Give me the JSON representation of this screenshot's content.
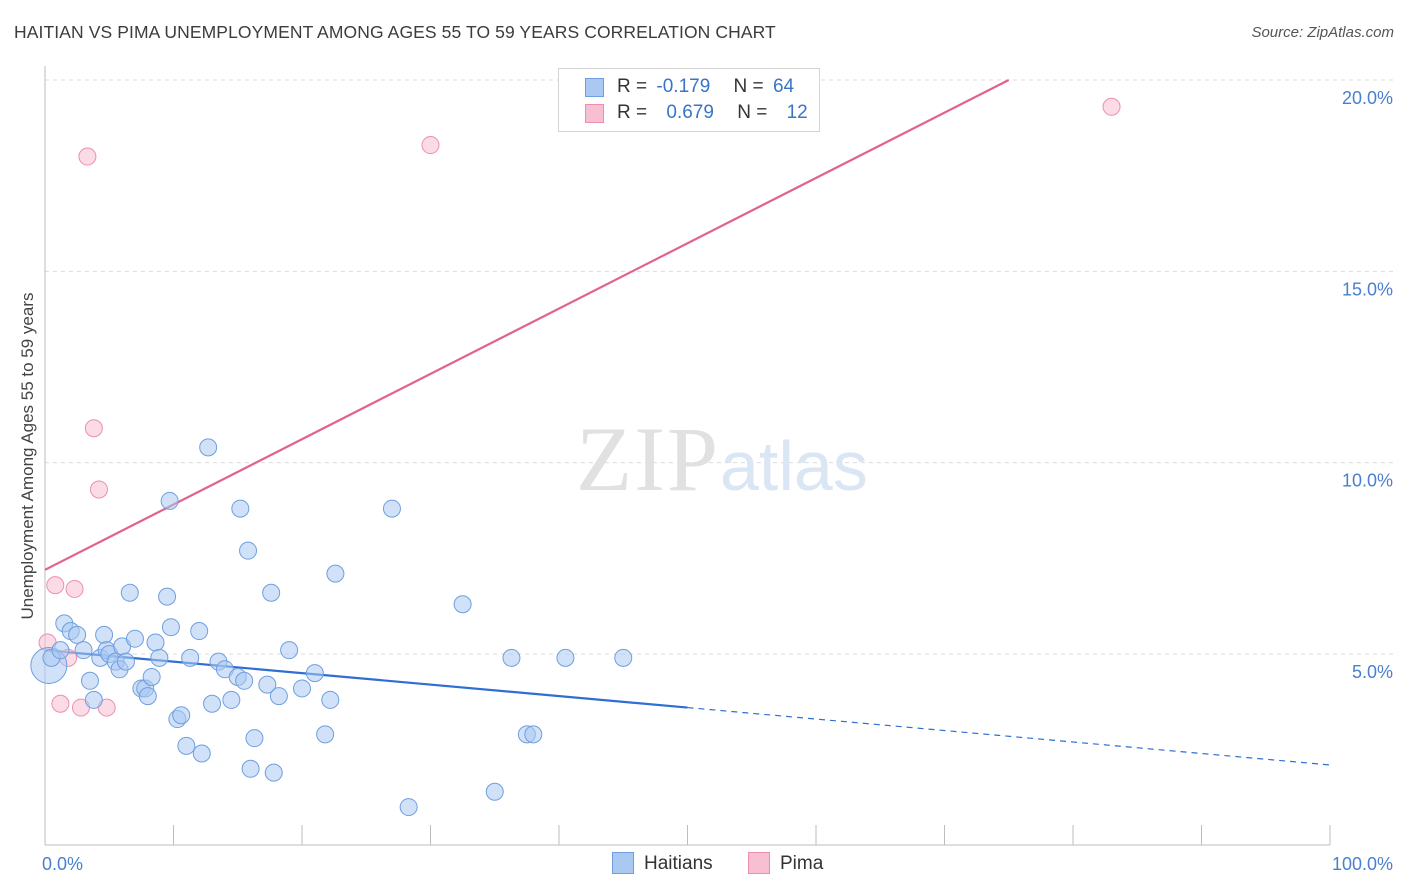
{
  "title": "HAITIAN VS PIMA UNEMPLOYMENT AMONG AGES 55 TO 59 YEARS CORRELATION CHART",
  "source": "Source: ZipAtlas.com",
  "watermark": {
    "zip": "ZIP",
    "atlas": "atlas"
  },
  "legend": {
    "rows": [
      {
        "r_label": "R =",
        "r_value": "-0.179",
        "n_label": "N =",
        "n_value": "64"
      },
      {
        "r_label": "R =",
        "r_value": "0.679",
        "n_label": "N =",
        "n_value": "12"
      }
    ]
  },
  "bottom_legend": {
    "haitians": "Haitians",
    "pima": "Pima"
  },
  "colors": {
    "haitians_fill": "#a9c9f2",
    "haitians_stroke": "#6f9fe0",
    "haitians_line": "#2f6fd1",
    "pima_fill": "#f7bfd1",
    "pima_stroke": "#ec8fae",
    "pima_line": "#e2628d",
    "tick_text": "#4a7fcf",
    "grid": "#dcdcdc"
  },
  "chart_data": {
    "type": "scatter",
    "title": "HAITIAN VS PIMA UNEMPLOYMENT AMONG AGES 55 TO 59 YEARS CORRELATION CHART",
    "xlabel": "",
    "ylabel": "Unemployment Among Ages 55 to 59 years",
    "xlim": [
      0,
      100
    ],
    "ylim": [
      0,
      20.5
    ],
    "x_tick_labels": [
      "0.0%",
      "100.0%"
    ],
    "y_ticks": [
      5,
      10,
      15,
      20
    ],
    "y_tick_labels": [
      "5.0%",
      "10.0%",
      "15.0%",
      "20.0%"
    ],
    "series": [
      {
        "name": "Haitians",
        "r": -0.179,
        "n": 64,
        "trend": {
          "x0": 0,
          "y0": 5.1,
          "x1": 50,
          "y1": 3.6,
          "dashed_to_x": 100,
          "dashed_to_y": 2.1
        },
        "points": [
          [
            0.3,
            4.7,
            "big"
          ],
          [
            0.5,
            4.9
          ],
          [
            1.2,
            5.1
          ],
          [
            1.5,
            5.8
          ],
          [
            2.0,
            5.6
          ],
          [
            2.5,
            5.5
          ],
          [
            3.0,
            5.1
          ],
          [
            3.5,
            4.3
          ],
          [
            3.8,
            3.8
          ],
          [
            4.3,
            4.9
          ],
          [
            4.6,
            5.5
          ],
          [
            4.8,
            5.1
          ],
          [
            5.0,
            5.0
          ],
          [
            5.5,
            4.8
          ],
          [
            5.8,
            4.6
          ],
          [
            6.0,
            5.2
          ],
          [
            6.3,
            4.8
          ],
          [
            6.6,
            6.6
          ],
          [
            7.0,
            5.4
          ],
          [
            7.5,
            4.1
          ],
          [
            7.8,
            4.1
          ],
          [
            8.0,
            3.9
          ],
          [
            8.3,
            4.4
          ],
          [
            8.6,
            5.3
          ],
          [
            8.9,
            4.9
          ],
          [
            9.5,
            6.5
          ],
          [
            9.7,
            9.0
          ],
          [
            9.8,
            5.7
          ],
          [
            10.3,
            3.3
          ],
          [
            10.6,
            3.4
          ],
          [
            11.0,
            2.6
          ],
          [
            11.3,
            4.9
          ],
          [
            12.0,
            5.6
          ],
          [
            12.2,
            2.4
          ],
          [
            12.7,
            10.4
          ],
          [
            13.0,
            3.7
          ],
          [
            13.5,
            4.8
          ],
          [
            14.0,
            4.6
          ],
          [
            14.5,
            3.8
          ],
          [
            15.0,
            4.4
          ],
          [
            15.5,
            4.3
          ],
          [
            15.8,
            7.7
          ],
          [
            16.0,
            2.0
          ],
          [
            16.3,
            2.8
          ],
          [
            17.3,
            4.2
          ],
          [
            17.6,
            6.6
          ],
          [
            17.8,
            1.9
          ],
          [
            18.2,
            3.9
          ],
          [
            19.0,
            5.1
          ],
          [
            20.0,
            4.1
          ],
          [
            21.0,
            4.5
          ],
          [
            21.8,
            2.9
          ],
          [
            22.2,
            3.8
          ],
          [
            22.6,
            7.1
          ],
          [
            15.2,
            8.8
          ],
          [
            27.0,
            8.8
          ],
          [
            28.3,
            1.0
          ],
          [
            32.5,
            6.3
          ],
          [
            35.0,
            1.4
          ],
          [
            36.3,
            4.9
          ],
          [
            37.5,
            2.9
          ],
          [
            38.0,
            2.9
          ],
          [
            40.5,
            4.9
          ],
          [
            45.0,
            4.9
          ]
        ]
      },
      {
        "name": "Pima",
        "r": 0.679,
        "n": 12,
        "trend": {
          "x0": 0,
          "y0": 7.2,
          "x1": 75,
          "y1": 20.0
        },
        "points": [
          [
            0.2,
            5.3
          ],
          [
            0.8,
            6.8
          ],
          [
            1.2,
            3.7
          ],
          [
            1.8,
            4.9
          ],
          [
            2.3,
            6.7
          ],
          [
            2.8,
            3.6
          ],
          [
            3.3,
            18.0
          ],
          [
            3.8,
            10.9
          ],
          [
            4.2,
            9.3
          ],
          [
            4.8,
            3.6
          ],
          [
            30.0,
            18.3
          ],
          [
            83.0,
            19.3
          ]
        ]
      }
    ]
  }
}
